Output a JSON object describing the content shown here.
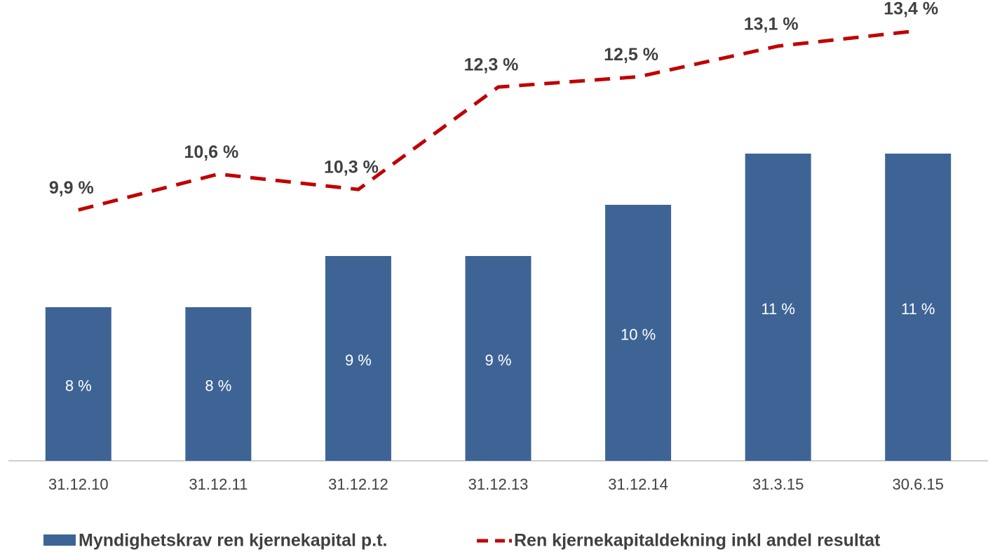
{
  "chart_data": {
    "type": "bar_line",
    "categories": [
      "31.12.10",
      "31.12.11",
      "31.12.12",
      "31.12.13",
      "31.12.14",
      "31.3.15",
      "30.6.15"
    ],
    "ylim": [
      5,
      14
    ],
    "series": [
      {
        "name": "Myndighetskrav ren kjernekapital p.t.",
        "type": "bar",
        "color": "#3e6496",
        "values": [
          8,
          8,
          9,
          9,
          10,
          11,
          11
        ],
        "value_labels": [
          "8 %",
          "8 %",
          "9 %",
          "9 %",
          "10 %",
          "11 %",
          "11 %"
        ]
      },
      {
        "name": "Ren kjernekapitaldekning inkl andel resultat",
        "type": "line",
        "color": "#c00000",
        "dashed": true,
        "values": [
          9.9,
          10.6,
          10.3,
          12.3,
          12.5,
          13.1,
          13.4
        ],
        "value_labels": [
          "9,9 %",
          "10,6 %",
          "10,3 %",
          "12,3 %",
          "12,5 %",
          "13,1 %",
          "13,4 %"
        ]
      }
    ]
  }
}
